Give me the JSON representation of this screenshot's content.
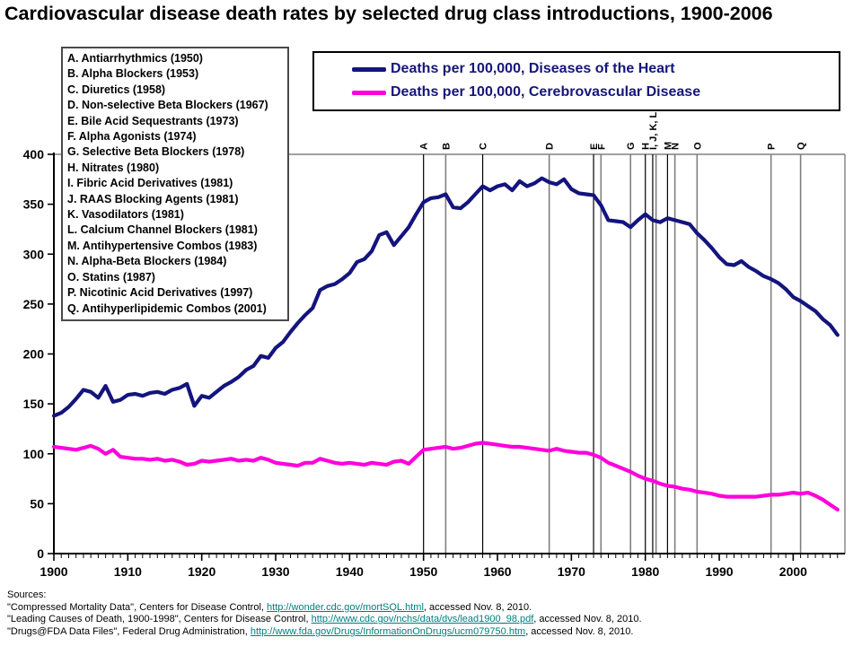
{
  "title": "Cardiovascular disease death rates by selected drug class introductions, 1900-2006",
  "drug_classes": [
    {
      "label": "A. Antiarrhythmics (1950)"
    },
    {
      "label": "B. Alpha Blockers (1953)"
    },
    {
      "label": "C. Diuretics (1958)"
    },
    {
      "label": "D. Non-selective Beta Blockers (1967)"
    },
    {
      "label": "E. Bile Acid Sequestrants (1973)"
    },
    {
      "label": "F. Alpha Agonists (1974)"
    },
    {
      "label": "G. Selective Beta Blockers (1978)"
    },
    {
      "label": "H. Nitrates (1980)"
    },
    {
      "label": "I. Fibric Acid Derivatives (1981)"
    },
    {
      "label": "J. RAAS Blocking Agents (1981)"
    },
    {
      "label": "K. Vasodilators (1981)"
    },
    {
      "label": "L. Calcium Channel Blockers (1981)"
    },
    {
      "label": "M. Antihypertensive Combos (1983)"
    },
    {
      "label": "N. Alpha-Beta Blockers (1984)"
    },
    {
      "label": "O. Statins (1987)"
    },
    {
      "label": "P. Nicotinic Acid Derivatives (1997)"
    },
    {
      "label": "Q. Antihyperlipidemic Combos (2001)"
    }
  ],
  "sources": {
    "heading": "Sources:",
    "lines": [
      [
        {
          "t": "\"Compressed Mortality Data\", Centers for Disease Control, "
        },
        {
          "t": "http://wonder.cdc.gov/mortSQL.html",
          "link": true
        },
        {
          "t": ", accessed Nov. 8, 2010."
        }
      ],
      [
        {
          "t": "\"Leading Causes of Death, 1900-1998\", Centers for Disease Control, "
        },
        {
          "t": "http://www.cdc.gov/nchs/data/dvs/lead1900_98.pdf",
          "link": true
        },
        {
          "t": ", accessed Nov. 8, 2010."
        }
      ],
      [
        {
          "t": "\"Drugs@FDA Data Files\", Federal Drug Administration, "
        },
        {
          "t": "http://www.fda.gov/Drugs/InformationOnDrugs/ucm079750.htm",
          "link": true
        },
        {
          "t": ", accessed Nov. 8, 2010."
        }
      ]
    ]
  },
  "chart_data": {
    "type": "line",
    "title": "Cardiovascular disease death rates by selected drug class introductions, 1900-2006",
    "x_start": 1900,
    "x_end": 2006,
    "xticks": [
      1900,
      1910,
      1920,
      1930,
      1940,
      1950,
      1960,
      1970,
      1980,
      1990,
      2000
    ],
    "yticks": [
      0,
      50,
      100,
      150,
      200,
      250,
      300,
      350,
      400
    ],
    "ylim": [
      0,
      400
    ],
    "grid": false,
    "legend_position": "top",
    "series": [
      {
        "name": "Deaths per 100,000, Diseases of the Heart",
        "color": "#14147e",
        "values": [
          138,
          141,
          147,
          155,
          164,
          162,
          156,
          168,
          152,
          154,
          159,
          160,
          158,
          161,
          162,
          160,
          164,
          166,
          170,
          148,
          158,
          156,
          162,
          168,
          172,
          177,
          184,
          188,
          198,
          196,
          206,
          212,
          222,
          231,
          239,
          246,
          264,
          268,
          270,
          275,
          281,
          292,
          295,
          303,
          319,
          322,
          309,
          318,
          327,
          340,
          352,
          356,
          357,
          360,
          347,
          346,
          352,
          360,
          368,
          364,
          368,
          370,
          364,
          373,
          368,
          371,
          376,
          372,
          370,
          375,
          365,
          361,
          360,
          359,
          349,
          334,
          333,
          332,
          327,
          334,
          340,
          334,
          332,
          336,
          334,
          332,
          330,
          321,
          314,
          306,
          297,
          290,
          289,
          293,
          287,
          283,
          278,
          275,
          271,
          265,
          257,
          253,
          248,
          243,
          235,
          229,
          219
        ]
      },
      {
        "name": "Deaths per 100,000, Cerebrovascular Disease",
        "color": "#ff00dd",
        "values": [
          107,
          106,
          105,
          104,
          106,
          108,
          105,
          100,
          104,
          97,
          96,
          95,
          95,
          94,
          95,
          93,
          94,
          92,
          89,
          90,
          93,
          92,
          93,
          94,
          95,
          93,
          94,
          93,
          96,
          94,
          91,
          90,
          89,
          88,
          91,
          91,
          95,
          93,
          91,
          90,
          91,
          90,
          89,
          91,
          90,
          89,
          92,
          93,
          90,
          97,
          104,
          105,
          106,
          107,
          105,
          106,
          108,
          110,
          111,
          110,
          109,
          108,
          107,
          107,
          106,
          105,
          104,
          103,
          105,
          103,
          102,
          101,
          101,
          99,
          96,
          91,
          88,
          85,
          82,
          78,
          75,
          73,
          70,
          68,
          67,
          65,
          64,
          62,
          61,
          60,
          58,
          57,
          57,
          57,
          57,
          57,
          58,
          59,
          59,
          60,
          61,
          60,
          61,
          58,
          54,
          49,
          44
        ]
      }
    ],
    "event_lines": [
      {
        "label": "A",
        "year": 1950,
        "color": "#000000"
      },
      {
        "label": "B",
        "year": 1953,
        "color": "#808080"
      },
      {
        "label": "C",
        "year": 1958,
        "color": "#000000"
      },
      {
        "label": "D",
        "year": 1967,
        "color": "#808080"
      },
      {
        "label": "E",
        "year": 1973,
        "color": "#000000"
      },
      {
        "label": "F",
        "year": 1974,
        "color": "#808080"
      },
      {
        "label": "G",
        "year": 1978,
        "color": "#808080"
      },
      {
        "label": "H",
        "year": 1980,
        "color": "#000000"
      },
      {
        "label": "I, J, K, L",
        "year": 1981,
        "color": "#000000"
      },
      {
        "label": "",
        "year": 1981.45,
        "color": "#808080"
      },
      {
        "label": "M",
        "year": 1983,
        "color": "#000000"
      },
      {
        "label": "N",
        "year": 1984,
        "color": "#808080"
      },
      {
        "label": "O",
        "year": 1987,
        "color": "#808080"
      },
      {
        "label": "P",
        "year": 1997,
        "color": "#808080"
      },
      {
        "label": "Q",
        "year": 2001,
        "color": "#808080"
      }
    ]
  },
  "colors": {
    "axis": "#000000",
    "plot_border": "#808080",
    "link": "#007e7e"
  }
}
